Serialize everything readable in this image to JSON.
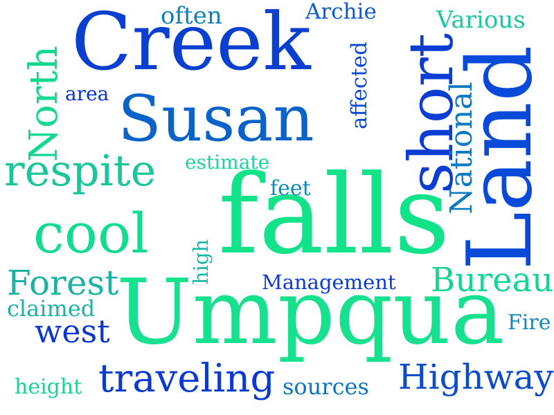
{
  "words": {
    "creek": {
      "text": "Creek",
      "color": "#0a3fd0"
    },
    "susan": {
      "text": "Susan",
      "color": "#0b63c9"
    },
    "falls": {
      "text": "falls",
      "color": "#12e28a"
    },
    "umpqua": {
      "text": "Umpqua",
      "color": "#17e08f"
    },
    "land": {
      "text": "Land",
      "color": "#0a4ad8"
    },
    "short": {
      "text": "short",
      "color": "#0b3dd4"
    },
    "cool": {
      "text": "cool",
      "color": "#12dc8f"
    },
    "respite": {
      "text": "respite",
      "color": "#1ac69a"
    },
    "north": {
      "text": "North",
      "color": "#17d890"
    },
    "national": {
      "text": "National",
      "color": "#0b7ac0"
    },
    "forest": {
      "text": "Forest",
      "color": "#1ab2a3"
    },
    "bureau": {
      "text": "Bureau",
      "color": "#13d694"
    },
    "traveling": {
      "text": "traveling",
      "color": "#0a3ad0"
    },
    "highway": {
      "text": "Highway",
      "color": "#0b4cc8"
    },
    "west": {
      "text": "west",
      "color": "#0a36d0"
    },
    "management": {
      "text": "Management",
      "color": "#0b3ad6"
    },
    "often": {
      "text": "often",
      "color": "#0d80bc"
    },
    "archie": {
      "text": "Archie",
      "color": "#0b5cc8"
    },
    "various": {
      "text": "Various",
      "color": "#19c7a0"
    },
    "area": {
      "text": "area",
      "color": "#0b34cf"
    },
    "affected": {
      "text": "affected",
      "color": "#0b47cf"
    },
    "estimate": {
      "text": "estimate",
      "color": "#19d69a"
    },
    "feet": {
      "text": "feet",
      "color": "#0b89bb"
    },
    "high": {
      "text": "high",
      "color": "#18b7a7"
    },
    "claimed": {
      "text": "claimed",
      "color": "#1ab2a8"
    },
    "fire": {
      "text": "Fire",
      "color": "#0f8ab8"
    },
    "height": {
      "text": "height",
      "color": "#13d494"
    },
    "sources": {
      "text": "sources",
      "color": "#0b74c2"
    }
  }
}
